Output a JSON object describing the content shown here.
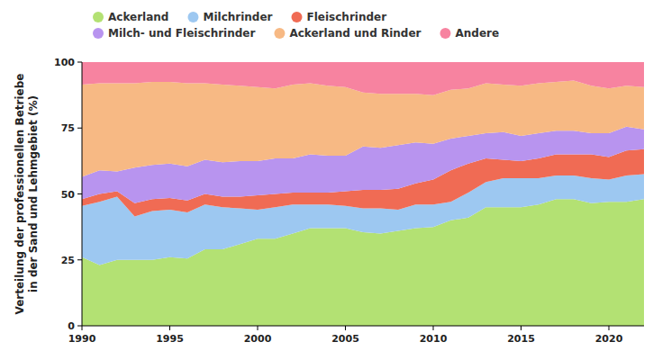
{
  "chart_data": {
    "type": "area",
    "stacked": true,
    "grid": false,
    "legend": "top",
    "y_label": [
      "Verteilung der professionellen Betriebe",
      "in der Sand und Lehmgebiet (%)"
    ],
    "x": [
      1990,
      1991,
      1992,
      1993,
      1994,
      1995,
      1996,
      1997,
      1998,
      1999,
      2000,
      2001,
      2002,
      2003,
      2004,
      2005,
      2006,
      2007,
      2008,
      2009,
      2010,
      2011,
      2012,
      2013,
      2014,
      2015,
      2016,
      2017,
      2018,
      2019,
      2020,
      2021,
      2022
    ],
    "xlim": [
      1990,
      2022
    ],
    "xticks": [
      1990,
      1995,
      2000,
      2005,
      2010,
      2015,
      2020
    ],
    "ylim": [
      0,
      100
    ],
    "yticks": [
      0,
      25,
      50,
      75,
      100
    ],
    "series": [
      {
        "name": "Ackerland",
        "color": "#b3e173",
        "values": [
          26,
          23,
          25,
          25,
          25,
          26,
          25.5,
          29,
          29,
          31,
          33,
          33,
          35,
          37,
          37,
          37,
          35.5,
          35,
          36,
          37,
          37.5,
          40,
          41,
          45,
          45,
          45,
          46,
          48,
          48,
          46.5,
          47,
          47,
          48
        ]
      },
      {
        "name": "Milchrinder",
        "color": "#9dc8f1",
        "values": [
          19.5,
          24,
          24,
          16.5,
          18.5,
          18,
          17.5,
          17,
          16,
          13.5,
          11,
          12,
          11,
          9,
          9,
          8.5,
          9,
          9.5,
          8,
          9,
          8.5,
          7,
          9.5,
          9.5,
          11,
          11,
          10,
          9,
          9,
          9.5,
          8.5,
          10,
          9.5
        ]
      },
      {
        "name": "Fleischrinder",
        "color": "#f06b54",
        "values": [
          2.5,
          3,
          2,
          5,
          4.5,
          4.5,
          4.5,
          4,
          4,
          4.5,
          5.5,
          5,
          4.5,
          4.5,
          4.5,
          5.5,
          7,
          7,
          8,
          8,
          9.5,
          12,
          11,
          9,
          7,
          6.5,
          7.5,
          8,
          8,
          9,
          8.5,
          9.5,
          9.5
        ]
      },
      {
        "name": "Milch- und Fleischrinder",
        "color": "#b894ef",
        "values": [
          8.5,
          9,
          7.5,
          13.5,
          13,
          13,
          13,
          13,
          13,
          13.5,
          13,
          13.5,
          13,
          14.5,
          14,
          13.5,
          16.5,
          16,
          16.5,
          15.5,
          13.5,
          12,
          10.5,
          9.5,
          10.5,
          9.5,
          9.5,
          9,
          9,
          8,
          9,
          9,
          7.5
        ]
      },
      {
        "name": "Ackerland und Rinder",
        "color": "#f7b984",
        "values": [
          35,
          33,
          33.5,
          32,
          31.5,
          31,
          31.5,
          29,
          29.5,
          28.5,
          28,
          26.5,
          28,
          27,
          26.5,
          26,
          20.5,
          20.5,
          19.5,
          18.5,
          18.5,
          18.5,
          18,
          19,
          18,
          19,
          19,
          18.5,
          19,
          18,
          17,
          15.5,
          16
        ]
      },
      {
        "name": "Andere",
        "color": "#f783a0",
        "values": [
          8.5,
          8,
          8,
          8,
          7.5,
          7.5,
          8,
          8,
          8.5,
          9,
          9.5,
          10,
          8.5,
          8,
          9,
          9.5,
          11.5,
          12,
          12,
          12,
          12.5,
          10.5,
          10,
          8,
          8.5,
          9,
          8,
          7.5,
          7,
          9,
          10,
          9,
          9.5
        ]
      }
    ]
  }
}
